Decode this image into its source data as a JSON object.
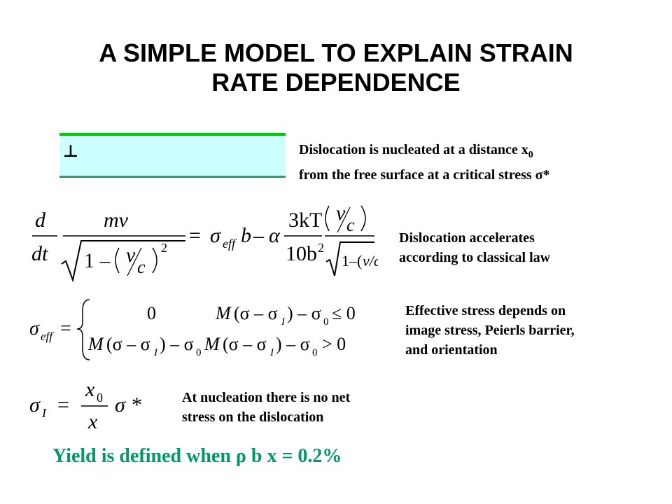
{
  "slide": {
    "title_line1": "A SIMPLE MODEL TO EXPLAIN STRAIN",
    "title_line2": "RATE DEPENDENCE",
    "dislocation_symbol": "⊥",
    "notes": {
      "nucleation_a": "Dislocation is nucleated at a distance x",
      "nucleation_sub": "0",
      "nucleation_b": "from the free surface at a critical stress σ*",
      "accelerates_a": "Dislocation accelerates",
      "accelerates_b": "according to classical law",
      "effective_a": "Effective stress depends on",
      "effective_b": "image stress, Peierls barrier,",
      "effective_c": "and orientation",
      "nonet_a": "At nucleation there is no net",
      "nonet_b": "stress on the dislocation"
    },
    "yield": "Yield is defined when ρ b x = 0.2%",
    "colors": {
      "crystal_fill": "#ccffff",
      "edge_top": "#00cc00",
      "edge_bottom": "#339966",
      "yield_text": "#009966"
    }
  }
}
